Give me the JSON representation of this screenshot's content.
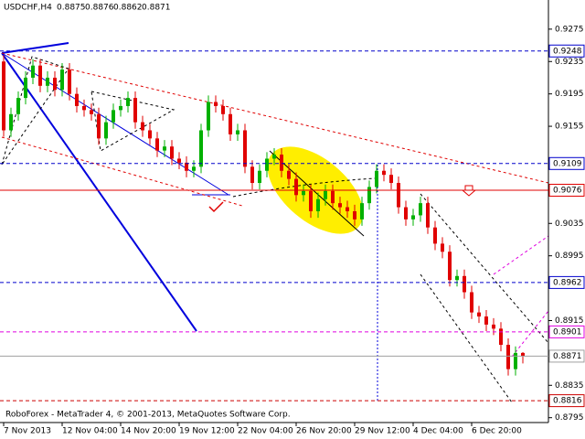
{
  "chart_data": {
    "type": "candlestick",
    "symbol": "USDCHF,H4",
    "footer": "RoboForex - MetaTrader 4, © 2001-2013, MetaQuotes Software Corp.",
    "up_color": "#00b000",
    "down_color": "#e00000",
    "categories": [
      "7 Nov 2013",
      null,
      null,
      null,
      null,
      null,
      null,
      null,
      "12 Nov 04:00",
      null,
      null,
      null,
      null,
      null,
      null,
      null,
      "14 Nov 20:00",
      null,
      null,
      null,
      null,
      null,
      null,
      null,
      "19 Nov 12:00",
      null,
      null,
      null,
      null,
      null,
      null,
      null,
      "22 Nov 04:00",
      null,
      null,
      null,
      null,
      null,
      null,
      null,
      "26 Nov 20:00",
      null,
      null,
      null,
      null,
      null,
      null,
      null,
      "29 Nov 12:00",
      null,
      null,
      null,
      null,
      null,
      null,
      null,
      "4 Dec 04:00",
      null,
      null,
      null,
      null,
      null,
      null,
      null,
      "6 Dec 20:00",
      null,
      null,
      null,
      null,
      null,
      null,
      null
    ],
    "open": [
      0.9235,
      0.915,
      0.917,
      0.919,
      0.9215,
      0.923,
      0.9205,
      0.9215,
      0.92,
      0.9225,
      0.9195,
      0.918,
      0.9175,
      0.917,
      0.914,
      0.916,
      0.9175,
      0.918,
      0.919,
      0.916,
      0.915,
      0.914,
      0.9125,
      0.913,
      0.9115,
      0.911,
      0.91,
      0.9105,
      0.915,
      0.9185,
      0.918,
      0.917,
      0.9145,
      0.915,
      0.9105,
      0.9085,
      0.91,
      0.9115,
      0.912,
      0.91,
      0.909,
      0.907,
      0.9075,
      0.905,
      0.9065,
      0.9075,
      0.906,
      0.9055,
      0.905,
      0.904,
      0.906,
      0.908,
      0.91,
      0.9095,
      0.9085,
      0.9055,
      0.904,
      0.9045,
      0.906,
      0.903,
      0.901,
      0.9,
      0.8965,
      0.897,
      0.895,
      0.8925,
      0.892,
      0.891,
      0.8905,
      0.8885,
      0.8855,
      0.8875
    ],
    "high": [
      0.9243,
      0.9178,
      0.9198,
      0.9223,
      0.9238,
      0.9238,
      0.9223,
      0.9223,
      0.9233,
      0.9233,
      0.9203,
      0.9188,
      0.9183,
      0.9178,
      0.9168,
      0.9183,
      0.9188,
      0.9198,
      0.9198,
      0.9168,
      0.9158,
      0.9148,
      0.9138,
      0.9138,
      0.9123,
      0.9118,
      0.9113,
      0.9158,
      0.9193,
      0.9193,
      0.9188,
      0.9178,
      0.9158,
      0.9158,
      0.9113,
      0.9108,
      0.9123,
      0.9128,
      0.9128,
      0.9108,
      0.9098,
      0.9083,
      0.9083,
      0.9073,
      0.9083,
      0.9083,
      0.9068,
      0.9063,
      0.9058,
      0.9068,
      0.9088,
      0.9108,
      0.9108,
      0.9103,
      0.9093,
      0.9063,
      0.9053,
      0.9068,
      0.9068,
      0.9038,
      0.9018,
      0.9008,
      0.8978,
      0.8978,
      0.8958,
      0.8933,
      0.8928,
      0.8918,
      0.8913,
      0.8893,
      0.8883,
      0.8876
    ],
    "low": [
      0.9142,
      0.9142,
      0.9162,
      0.9182,
      0.9207,
      0.9197,
      0.9197,
      0.9192,
      0.9192,
      0.9187,
      0.9172,
      0.9167,
      0.9162,
      0.9132,
      0.9132,
      0.9152,
      0.9167,
      0.9172,
      0.9152,
      0.9142,
      0.9132,
      0.9117,
      0.9117,
      0.9107,
      0.9102,
      0.9092,
      0.9092,
      0.9097,
      0.9142,
      0.9172,
      0.9162,
      0.9137,
      0.9137,
      0.9097,
      0.9077,
      0.9077,
      0.9092,
      0.9107,
      0.9092,
      0.9082,
      0.9062,
      0.9062,
      0.9042,
      0.9042,
      0.9057,
      0.9052,
      0.9047,
      0.9042,
      0.9032,
      0.9032,
      0.9052,
      0.9072,
      0.9087,
      0.9077,
      0.9047,
      0.9032,
      0.9032,
      0.9037,
      0.9022,
      0.9002,
      0.8992,
      0.8957,
      0.8957,
      0.8942,
      0.8917,
      0.8912,
      0.8902,
      0.8897,
      0.8877,
      0.8847,
      0.8847,
      0.8862
    ],
    "close": [
      0.915,
      0.917,
      0.919,
      0.9215,
      0.923,
      0.9205,
      0.9215,
      0.92,
      0.9225,
      0.9195,
      0.918,
      0.9175,
      0.917,
      0.914,
      0.916,
      0.9175,
      0.918,
      0.919,
      0.916,
      0.915,
      0.914,
      0.9125,
      0.913,
      0.9115,
      0.911,
      0.91,
      0.9105,
      0.915,
      0.9185,
      0.918,
      0.917,
      0.9145,
      0.915,
      0.9105,
      0.9085,
      0.91,
      0.9115,
      0.912,
      0.91,
      0.909,
      0.907,
      0.9075,
      0.905,
      0.9065,
      0.9075,
      0.906,
      0.9055,
      0.905,
      0.904,
      0.906,
      0.908,
      0.91,
      0.9095,
      0.9085,
      0.9055,
      0.904,
      0.9045,
      0.906,
      0.903,
      0.901,
      0.9,
      0.8965,
      0.897,
      0.895,
      0.8925,
      0.892,
      0.891,
      0.8905,
      0.8885,
      0.8855,
      0.8875,
      0.8871
    ],
    "ylim": [
      0.8789,
      0.9311
    ],
    "yticks": [
      0.9275,
      0.9235,
      0.9195,
      0.9155,
      0.9035,
      0.8995,
      0.8915,
      0.8835,
      0.8795
    ],
    "levels": [
      {
        "value": 0.9248,
        "color": "#0000cc",
        "style": "dashed"
      },
      {
        "value": 0.9109,
        "color": "#0000cc",
        "style": "dashed"
      },
      {
        "value": 0.9076,
        "color": "#e00000",
        "style": "solid"
      },
      {
        "value": 0.8962,
        "color": "#0000cc",
        "style": "dashed"
      },
      {
        "value": 0.8901,
        "color": "#e000e0",
        "style": "dashed"
      },
      {
        "value": 0.8871,
        "color": "#a0a0a0",
        "style": "solid"
      },
      {
        "value": 0.8816,
        "color": "#cc0000",
        "style": "dashed"
      }
    ]
  }
}
